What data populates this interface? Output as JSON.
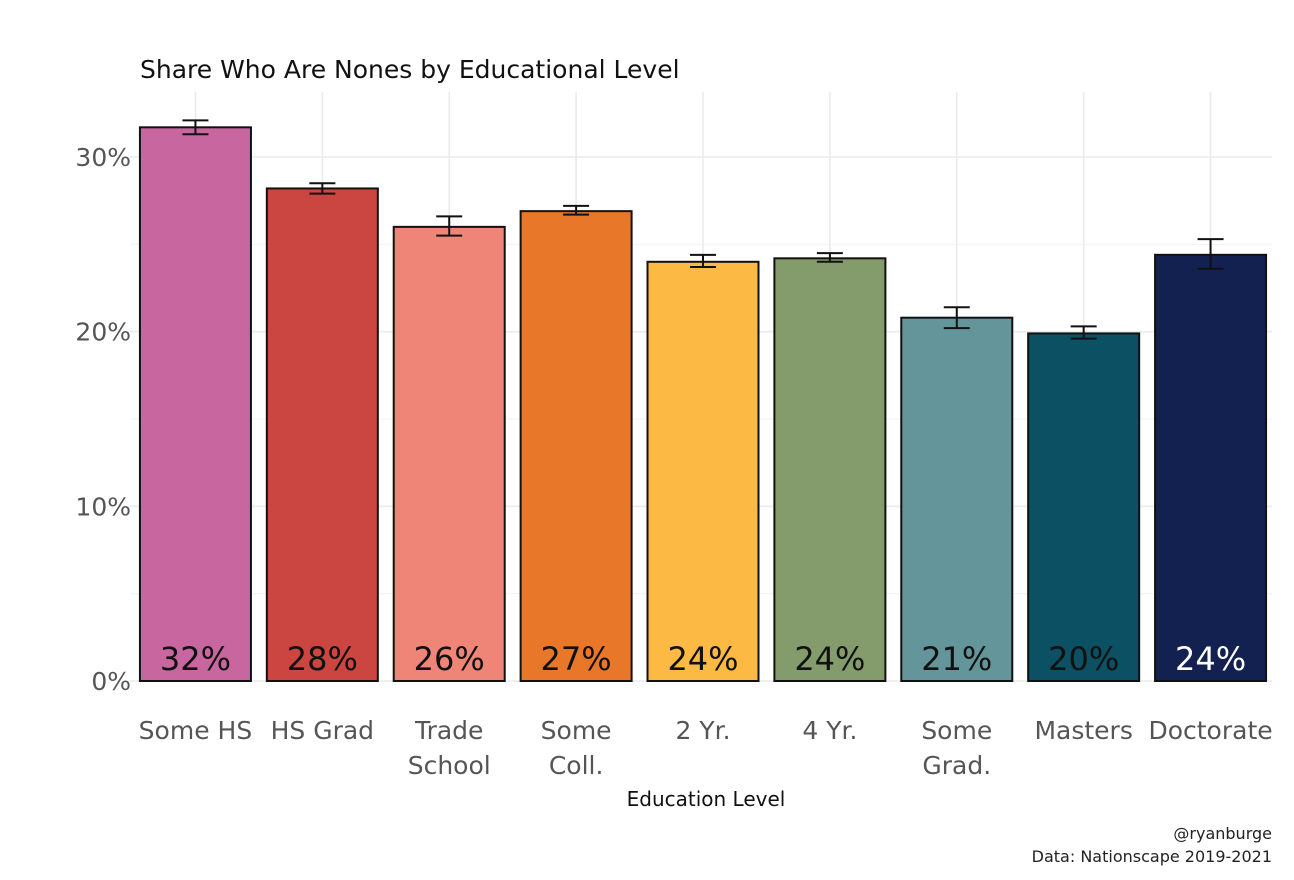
{
  "chart_data": {
    "type": "bar",
    "title": "Share Who Are Nones by Educational Level",
    "xlabel": "Education Level",
    "ylabel": "",
    "ylim": [
      0,
      0.33
    ],
    "yticks": [
      {
        "value": 0,
        "label": "0%"
      },
      {
        "value": 0.1,
        "label": "10%"
      },
      {
        "value": 0.2,
        "label": "20%"
      },
      {
        "value": 0.3,
        "label": "30%"
      }
    ],
    "grid": true,
    "legend": "none",
    "categories": [
      [
        "Some HS"
      ],
      [
        "HS Grad"
      ],
      [
        "Trade",
        "School"
      ],
      [
        "Some",
        "Coll."
      ],
      [
        "2 Yr."
      ],
      [
        "4 Yr."
      ],
      [
        "Some",
        "Grad."
      ],
      [
        "Masters"
      ],
      [
        "Doctorate"
      ]
    ],
    "values": [
      0.317,
      0.282,
      0.26,
      0.269,
      0.24,
      0.242,
      0.208,
      0.199,
      0.244
    ],
    "error_low": [
      0.313,
      0.279,
      0.255,
      0.267,
      0.237,
      0.24,
      0.202,
      0.196,
      0.236
    ],
    "error_high": [
      0.321,
      0.285,
      0.266,
      0.272,
      0.244,
      0.245,
      0.214,
      0.203,
      0.253
    ],
    "data_labels": [
      "32%",
      "28%",
      "26%",
      "27%",
      "24%",
      "24%",
      "21%",
      "20%",
      "24%"
    ],
    "colors": [
      "#c8679f",
      "#cb4541",
      "#ee8577",
      "#e8772a",
      "#fcb944",
      "#849c6b",
      "#64959b",
      "#0c5064",
      "#132150"
    ],
    "label_colors": [
      "#111111",
      "#111111",
      "#111111",
      "#111111",
      "#111111",
      "#111111",
      "#111111",
      "#111111",
      "#ffffff"
    ]
  },
  "caption": {
    "line1": "@ryanburge",
    "line2": "Data: Nationscape 2019-2021"
  }
}
